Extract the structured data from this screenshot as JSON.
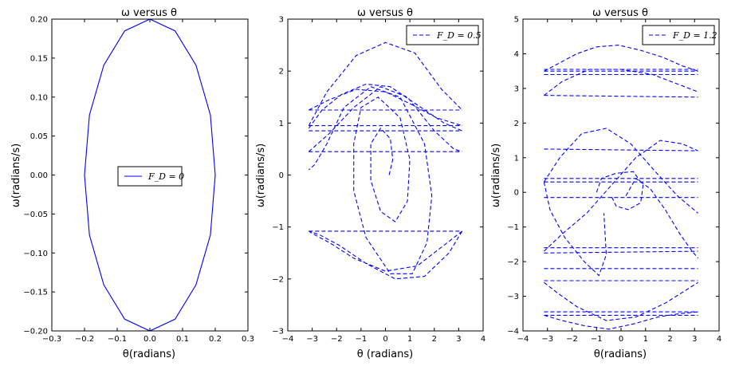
{
  "colors": {
    "series": "#0000ff",
    "frame": "#000000",
    "background": "#ffffff"
  },
  "chart_data": [
    {
      "type": "line",
      "title": "ω versus θ",
      "xlabel": "θ(radians)",
      "ylabel": "ω(radians/s)",
      "xlim": [
        -0.3,
        0.3
      ],
      "ylim": [
        -0.2,
        0.2
      ],
      "xticks": [
        "−0.3",
        "−0.2",
        "−0.1",
        "0.0",
        "0.1",
        "0.2",
        "0.3"
      ],
      "yticks": [
        "−0.20",
        "−0.15",
        "−0.10",
        "−0.05",
        "0.00",
        "0.05",
        "0.10",
        "0.15",
        "0.20"
      ],
      "legend": {
        "label": "F_D = 0",
        "position": "center"
      },
      "series": [
        {
          "name": "F_D = 0",
          "style": "solid",
          "x": [
            0.2,
            0.185,
            0.141,
            0.077,
            0.0,
            -0.077,
            -0.141,
            -0.185,
            -0.2,
            -0.185,
            -0.141,
            -0.077,
            0.0,
            0.077,
            0.141,
            0.185,
            0.2
          ],
          "y": [
            0.0,
            0.077,
            0.141,
            0.185,
            0.2,
            0.185,
            0.141,
            0.077,
            0.0,
            -0.077,
            -0.141,
            -0.185,
            -0.2,
            -0.185,
            -0.141,
            -0.077,
            0.0
          ]
        }
      ]
    },
    {
      "type": "line",
      "title": "ω versus θ",
      "xlabel": "θ (radians)",
      "ylabel": "ω(radians/s)",
      "xlim": [
        -4,
        4
      ],
      "ylim": [
        -3,
        3
      ],
      "xticks": [
        "−4",
        "−3",
        "−2",
        "−1",
        "0",
        "1",
        "2",
        "3",
        "4"
      ],
      "yticks": [
        "−3",
        "−2",
        "−1",
        "0",
        "1",
        "2",
        "3"
      ],
      "legend": {
        "label": "F_D = 0.5",
        "position": "top-right"
      },
      "series": [
        {
          "name": "F_D = 0.5",
          "style": "dashed",
          "x": [
            0.15,
            0.3,
            0.2,
            -0.2,
            -0.6,
            -0.6,
            -0.2,
            0.4,
            0.9,
            1.0,
            0.6,
            -0.3,
            -1.0,
            -1.3,
            -1.3,
            -0.8,
            0.2,
            1.1,
            1.7,
            1.9,
            1.6,
            0.6,
            -0.6,
            -1.7,
            -2.4,
            -2.9,
            -3.14,
            null,
            3.14,
            2.6,
            1.6,
            0.4,
            -0.8,
            -1.9,
            -2.7,
            -3.14,
            null,
            3.14,
            2.4,
            1.3,
            0.0,
            -1.3,
            -2.3,
            -2.9,
            -3.14,
            null,
            -3.14,
            -2.4,
            -1.2,
            0.0,
            1.2,
            2.3,
            3.14,
            null,
            -3.14,
            -2.6,
            -1.8,
            -0.8,
            0.2,
            1.3,
            2.4,
            3.14,
            null,
            -3.14,
            -2.3,
            -1.2,
            0.0,
            1.1,
            2.1,
            3.14,
            null,
            -3.14,
            -2.3,
            -1.3,
            -0.2,
            0.9,
            2.0,
            2.8,
            3.14,
            null,
            -3.14,
            3.14,
            null,
            -3.14,
            3.14,
            null,
            -3.14,
            3.14,
            null,
            -3.14,
            3.14,
            null,
            -3.14,
            3.14
          ],
          "y": [
            0.0,
            0.3,
            0.7,
            0.9,
            0.6,
            -0.1,
            -0.7,
            -0.9,
            -0.5,
            0.3,
            1.1,
            1.5,
            1.3,
            0.6,
            -0.3,
            -1.2,
            -1.9,
            -1.9,
            -1.3,
            -0.4,
            0.6,
            1.5,
            1.7,
            1.3,
            0.6,
            0.2,
            0.1,
            null,
            -1.08,
            -1.5,
            -1.95,
            -2.0,
            -1.7,
            -1.35,
            -1.15,
            -1.08,
            null,
            -1.08,
            -1.35,
            -1.75,
            -1.85,
            -1.6,
            -1.3,
            -1.15,
            -1.08,
            null,
            0.95,
            1.6,
            2.3,
            2.55,
            2.35,
            1.65,
            1.25,
            null,
            0.9,
            1.25,
            1.55,
            1.75,
            1.7,
            1.35,
            1.0,
            0.85,
            null,
            1.25,
            1.45,
            1.65,
            1.6,
            1.35,
            1.1,
            0.95,
            null,
            0.45,
            0.8,
            1.3,
            1.7,
            1.5,
            0.85,
            0.5,
            0.45,
            null,
            1.25,
            1.25,
            null,
            0.95,
            0.95,
            null,
            0.85,
            0.85,
            null,
            0.45,
            0.45,
            null,
            -1.08,
            -1.08
          ]
        }
      ]
    },
    {
      "type": "line",
      "title": "ω versus θ",
      "xlabel": "θ(radians)",
      "ylabel": "ω(radians/s)",
      "xlim": [
        -4,
        4
      ],
      "ylim": [
        -4,
        5
      ],
      "xticks": [
        "−4",
        "−3",
        "−2",
        "−1",
        "0",
        "1",
        "2",
        "3",
        "4"
      ],
      "yticks": [
        "−4",
        "−3",
        "−2",
        "−1",
        "0",
        "1",
        "2",
        "3",
        "4",
        "5"
      ],
      "legend": {
        "label": "F_D = 1.2",
        "position": "top-right"
      },
      "series": [
        {
          "name": "F_D = 1.2",
          "style": "dashed",
          "x": [
            -3.14,
            -2.6,
            -1.8,
            -1.0,
            -0.1,
            0.8,
            1.7,
            2.5,
            3.14,
            null,
            -3.14,
            -2.4,
            -1.5,
            -0.5,
            0.5,
            1.5,
            2.4,
            3.14,
            null,
            -3.14,
            -2.5,
            -1.6,
            -0.6,
            0.4,
            1.4,
            2.3,
            3.14,
            null,
            -3.14,
            -2.4,
            -1.4,
            -0.4,
            0.6,
            1.6,
            2.5,
            3.14,
            null,
            -3.14,
            -2.9,
            -2.3,
            -1.5,
            -0.9,
            -0.6,
            -0.7,
            null,
            -1.0,
            -0.8,
            -0.2,
            0.5,
            0.9,
            0.8,
            0.3,
            -0.2,
            -0.4,
            null,
            0.2,
            0.6,
            1.2,
            1.8,
            2.4,
            2.9,
            3.14,
            null,
            -3.14,
            -2.6,
            -1.8,
            -0.6,
            0.6,
            1.8,
            2.7,
            3.14,
            null,
            -3.14,
            -2.4,
            -1.3,
            0.0,
            1.3,
            2.4,
            3.14,
            null,
            -3.14,
            3.14,
            null,
            -3.14,
            3.14,
            null,
            -3.14,
            3.14,
            null,
            -3.14,
            3.14,
            null,
            -3.14,
            3.14,
            null,
            -3.14,
            3.14,
            null,
            -3.14,
            3.14,
            null,
            -3.14,
            3.14,
            null,
            -3.14,
            3.14,
            null,
            -3.14,
            3.14,
            null,
            -3.14,
            3.14,
            null,
            -3.14,
            3.14,
            null,
            -3.14,
            3.14,
            null,
            -3.14,
            3.14
          ],
          "y": [
            3.5,
            3.7,
            4.0,
            4.2,
            4.25,
            4.1,
            3.9,
            3.65,
            3.5,
            null,
            -3.55,
            -3.7,
            -3.85,
            -3.95,
            -3.8,
            -3.6,
            -3.5,
            -3.45,
            null,
            0.3,
            1.0,
            1.7,
            1.85,
            1.4,
            0.6,
            -0.1,
            -0.6,
            null,
            -1.7,
            -1.2,
            -0.6,
            0.2,
            1.0,
            1.5,
            1.4,
            1.2,
            null,
            0.3,
            -0.5,
            -1.3,
            -2.0,
            -2.4,
            -1.8,
            -0.6,
            null,
            0.0,
            0.4,
            0.55,
            0.6,
            0.2,
            -0.3,
            -0.5,
            -0.4,
            -0.1,
            null,
            -0.1,
            0.4,
            0.1,
            -0.5,
            -1.2,
            -1.7,
            -1.9,
            null,
            -2.6,
            -2.9,
            -3.3,
            -3.7,
            -3.6,
            -3.2,
            -2.8,
            -2.6,
            null,
            2.8,
            3.2,
            3.55,
            3.55,
            3.4,
            3.1,
            2.9,
            null,
            3.55,
            3.55,
            null,
            3.5,
            3.5,
            null,
            3.4,
            3.4,
            null,
            2.8,
            2.75,
            null,
            1.25,
            1.2,
            null,
            0.4,
            0.4,
            null,
            0.3,
            0.3,
            null,
            -0.15,
            -0.15,
            null,
            -1.6,
            -1.6,
            null,
            -1.75,
            -1.7,
            null,
            -2.2,
            -2.2,
            null,
            -2.55,
            -2.55,
            null,
            -3.45,
            -3.45,
            null,
            -3.55,
            -3.55
          ]
        }
      ]
    }
  ]
}
